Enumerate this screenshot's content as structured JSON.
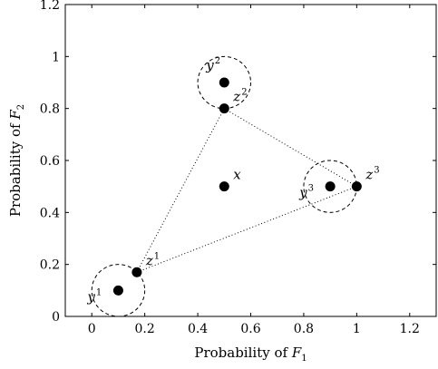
{
  "chart_data": {
    "type": "scatter",
    "title": "",
    "xlabel": {
      "prefix": "Probability of ",
      "var": "F",
      "sub": "1"
    },
    "ylabel": {
      "prefix": "Probability of ",
      "var": "F",
      "sub": "2"
    },
    "xlim": [
      -0.1,
      1.3
    ],
    "ylim": [
      0,
      1.2
    ],
    "xticks": [
      {
        "value": 0,
        "label": "0"
      },
      {
        "value": 0.2,
        "label": "0.2"
      },
      {
        "value": 0.4,
        "label": "0.4"
      },
      {
        "value": 0.6,
        "label": "0.6"
      },
      {
        "value": 0.8,
        "label": "0.8"
      },
      {
        "value": 1,
        "label": "1"
      },
      {
        "value": 1.2,
        "label": "1.2"
      }
    ],
    "yticks": [
      {
        "value": 0,
        "label": "0"
      },
      {
        "value": 0.2,
        "label": "0.2"
      },
      {
        "value": 0.4,
        "label": "0.4"
      },
      {
        "value": 0.6,
        "label": "0.6"
      },
      {
        "value": 0.8,
        "label": "0.8"
      },
      {
        "value": 1,
        "label": "1"
      },
      {
        "value": 1.2,
        "label": "1.2"
      }
    ],
    "grid": false,
    "points": [
      {
        "id": "y1",
        "var": "y",
        "sup": "1",
        "x": 0.1,
        "y": 0.1,
        "label_side": "below-left"
      },
      {
        "id": "z1",
        "var": "z",
        "sup": "1",
        "x": 0.17,
        "y": 0.17,
        "label_side": "above-right"
      },
      {
        "id": "y2",
        "var": "y",
        "sup": "2",
        "x": 0.5,
        "y": 0.9,
        "label_side": "above-left"
      },
      {
        "id": "z2",
        "var": "z",
        "sup": "2",
        "x": 0.5,
        "y": 0.8,
        "label_side": "above-right"
      },
      {
        "id": "x",
        "var": "x",
        "sup": "",
        "x": 0.5,
        "y": 0.5,
        "label_side": "above-right"
      },
      {
        "id": "y3",
        "var": "y",
        "sup": "3",
        "x": 0.9,
        "y": 0.5,
        "label_side": "below-left"
      },
      {
        "id": "z3",
        "var": "z",
        "sup": "3",
        "x": 1.0,
        "y": 0.5,
        "label_side": "above-right"
      }
    ],
    "circles": [
      {
        "id": "circle-1",
        "cx": 0.1,
        "cy": 0.1,
        "r": 0.1,
        "style": "dashed"
      },
      {
        "id": "circle-2",
        "cx": 0.5,
        "cy": 0.9,
        "r": 0.1,
        "style": "dashed"
      },
      {
        "id": "circle-3",
        "cx": 0.9,
        "cy": 0.5,
        "r": 0.1,
        "style": "dashed"
      }
    ],
    "triangle": {
      "vertices": [
        "z1",
        "z2",
        "z3"
      ],
      "style": "dotted"
    },
    "colors": {
      "marker": "#000000",
      "axis": "#000000",
      "background": "#ffffff"
    }
  }
}
